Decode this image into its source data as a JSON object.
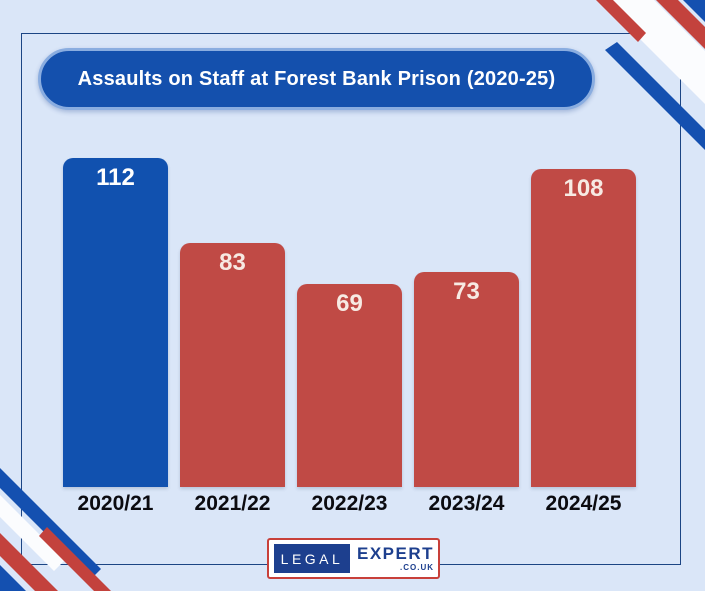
{
  "title": "Assaults on Staff at Forest Bank Prison (2020-25)",
  "chart_data": {
    "type": "bar",
    "title": "Assaults on Staff at Forest Bank Prison (2020-25)",
    "categories": [
      "2020/21",
      "2021/22",
      "2022/23",
      "2023/24",
      "2024/25"
    ],
    "values": [
      112,
      83,
      69,
      73,
      108
    ],
    "xlabel": "",
    "ylabel": "",
    "ylim": [
      0,
      120
    ],
    "grid": false,
    "legend": false,
    "value_labels": "inside-top",
    "bar_colors": [
      "#1151af",
      "#c04a45",
      "#c04a45",
      "#c04a45",
      "#c04a45"
    ],
    "value_label_colors": [
      "#ffffff",
      "#f7eae3",
      "#f7eae3",
      "#f7eae3",
      "#f7eae3"
    ]
  },
  "logo": {
    "legal": "LEGAL",
    "expert": "EXPERT",
    "suffix": ".CO.UK"
  },
  "colors": {
    "background": "#dae6f8",
    "frame_border": "#1c4584",
    "title_bg": "#1450ad",
    "title_border": "#8aade0",
    "ribbon_red": "#c3423d",
    "ribbon_blue": "#1450b0",
    "ribbon_white": "#fbfcfe",
    "category_text": "#0b0b10"
  }
}
